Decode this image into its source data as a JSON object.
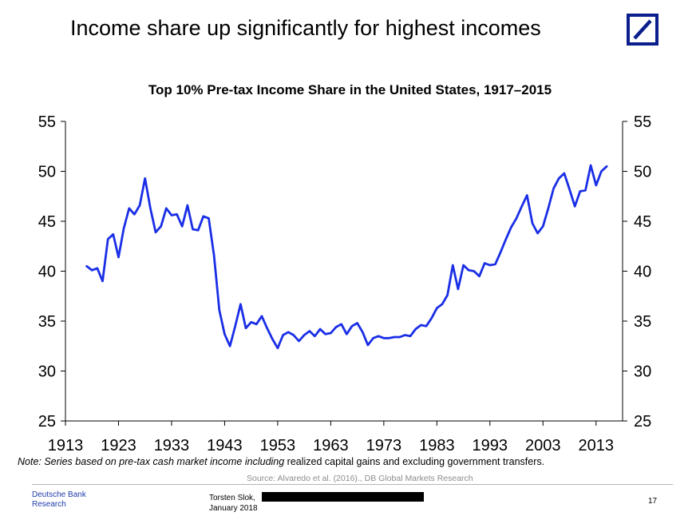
{
  "header": {
    "title": "Income share up significantly for highest incomes"
  },
  "logo": {
    "name": "deutsche-bank-logo",
    "color": "#0a1e8c"
  },
  "chart_data": {
    "type": "line",
    "title": "Top 10% Pre-tax Income Share in the United States, 1917–2015",
    "xlabel": "",
    "ylabel": "",
    "xlim": [
      1913,
      2018
    ],
    "ylim": [
      25,
      55
    ],
    "x_ticks": [
      "1913",
      "1923",
      "1933",
      "1943",
      "1953",
      "1963",
      "1973",
      "1983",
      "1993",
      "2003",
      "2013"
    ],
    "y_ticks_left": [
      "25",
      "30",
      "35",
      "40",
      "45",
      "50",
      "55"
    ],
    "y_ticks_right": [
      "25",
      "30",
      "35",
      "40",
      "45",
      "50",
      "55"
    ],
    "grid": false,
    "line_color": "#1a2ee6",
    "series": [
      {
        "x": [
          1917,
          1918,
          1919,
          1920,
          1921,
          1922,
          1923,
          1924,
          1925,
          1926,
          1927,
          1928,
          1929,
          1930,
          1931,
          1932,
          1933,
          1934,
          1935,
          1936,
          1937,
          1938,
          1939,
          1940,
          1941,
          1942,
          1943,
          1944,
          1945,
          1946,
          1947,
          1948,
          1949,
          1950,
          1951,
          1952,
          1953,
          1954,
          1955,
          1956,
          1957,
          1958,
          1959,
          1960,
          1961,
          1962,
          1963,
          1964,
          1965,
          1966,
          1967,
          1968,
          1969,
          1970,
          1971,
          1972,
          1973,
          1974,
          1975,
          1976,
          1977,
          1978,
          1979,
          1980,
          1981,
          1982,
          1983,
          1984,
          1985,
          1986,
          1987,
          1988,
          1989,
          1990,
          1991,
          1992,
          1993,
          1994,
          1995,
          1996,
          1997,
          1998,
          1999,
          2000,
          2001,
          2002,
          2003,
          2004,
          2005,
          2006,
          2007,
          2008,
          2009,
          2010,
          2011,
          2012,
          2013,
          2014,
          2015
        ],
        "values": [
          40.5,
          40.1,
          40.3,
          39.0,
          43.2,
          43.7,
          41.4,
          44.3,
          46.3,
          45.7,
          46.6,
          49.3,
          46.3,
          43.9,
          44.5,
          46.3,
          45.6,
          45.7,
          44.5,
          46.6,
          44.2,
          44.1,
          45.5,
          45.3,
          41.6,
          36.1,
          33.7,
          32.5,
          34.5,
          36.7,
          34.3,
          34.9,
          34.7,
          35.5,
          34.3,
          33.2,
          32.3,
          33.6,
          33.9,
          33.6,
          33.0,
          33.6,
          34.0,
          33.5,
          34.2,
          33.7,
          33.8,
          34.4,
          34.7,
          33.7,
          34.5,
          34.8,
          33.9,
          32.6,
          33.3,
          33.5,
          33.3,
          33.3,
          33.4,
          33.4,
          33.6,
          33.5,
          34.2,
          34.6,
          34.5,
          35.3,
          36.3,
          36.7,
          37.6,
          40.6,
          38.2,
          40.6,
          40.1,
          40.0,
          39.5,
          40.8,
          40.6,
          40.7,
          41.9,
          43.2,
          44.4,
          45.3,
          46.5,
          47.6,
          44.8,
          43.8,
          44.5,
          46.3,
          48.3,
          49.3,
          49.8,
          48.2,
          46.5,
          48.0,
          48.1,
          50.6,
          48.6,
          50.0,
          50.5
        ]
      }
    ]
  },
  "note": {
    "italic_part": "Note: Series based on pre-tax cash market income including",
    "regular_part": " realized capital gains and excluding government transfers."
  },
  "source": "Source:  Alvaredo et al. (2016)., DB Global Markets Research",
  "footer": {
    "brand_line1": "Deutsche Bank",
    "brand_line2": "Research",
    "author": "Torsten Slok,",
    "date": "January 2018",
    "page_number": "17"
  }
}
